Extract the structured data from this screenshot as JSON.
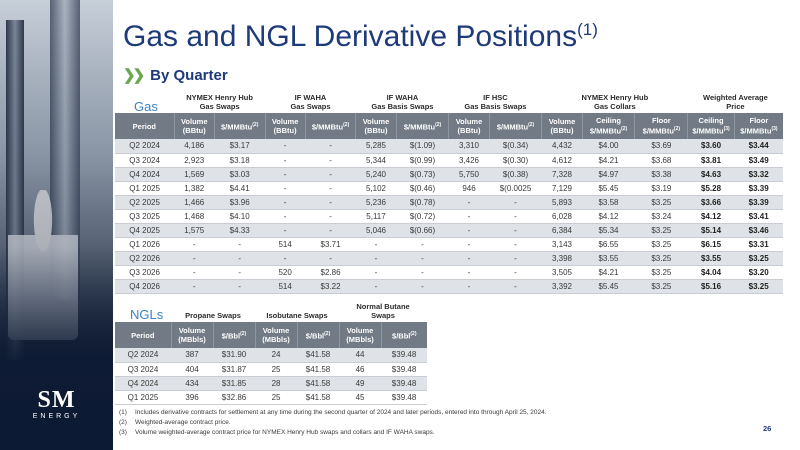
{
  "title": "Gas and NGL Derivative Positions",
  "title_sup": "(1)",
  "subtitle": "By Quarter",
  "logo": {
    "main": "SM",
    "sub": "ENERGY"
  },
  "gas": {
    "label": "Gas",
    "groups": [
      "NYMEX Henry Hub\nGas Swaps",
      "IF WAHA\nGas Swaps",
      "IF WAHA\nGas Basis Swaps",
      "IF HSC\nGas Basis Swaps",
      "NYMEX Henry Hub\nGas Collars",
      "Weighted Average\nPrice"
    ],
    "headers": [
      "Period",
      "Volume\n(BBtu)",
      "$/MMBtu(2)",
      "Volume\n(BBtu)",
      "$/MMBtu(2)",
      "Volume\n(BBtu)",
      "$/MMBtu(2)",
      "Volume\n(BBtu)",
      "$/MMBtu(2)",
      "Volume\n(BBtu)",
      "Ceiling\n$/MMBtu(2)",
      "Floor\n$/MMBtu(2)",
      "Ceiling\n$/MMBtu(3)",
      "Floor\n$/MMBtu(3)"
    ],
    "rows": [
      [
        "Q2 2024",
        "4,186",
        "$3.17",
        "-",
        "-",
        "5,285",
        "$(1.09)",
        "3,310",
        "$(0.34)",
        "4,432",
        "$4.00",
        "$3.69",
        "$3.60",
        "$3.44"
      ],
      [
        "Q3 2024",
        "2,923",
        "$3.18",
        "-",
        "-",
        "5,344",
        "$(0.99)",
        "3,426",
        "$(0.30)",
        "4,612",
        "$4.21",
        "$3.68",
        "$3.81",
        "$3.49"
      ],
      [
        "Q4 2024",
        "1,569",
        "$3.03",
        "-",
        "-",
        "5,240",
        "$(0.73)",
        "5,750",
        "$(0.38)",
        "7,328",
        "$4.97",
        "$3.38",
        "$4.63",
        "$3.32"
      ],
      [
        "Q1 2025",
        "1,382",
        "$4.41",
        "-",
        "-",
        "5,102",
        "$(0.46)",
        "946",
        "$(0.0025",
        "7,129",
        "$5.45",
        "$3.19",
        "$5.28",
        "$3.39"
      ],
      [
        "Q2 2025",
        "1,466",
        "$3.96",
        "-",
        "-",
        "5,236",
        "$(0.78)",
        "-",
        "-",
        "5,893",
        "$3.58",
        "$3.25",
        "$3.66",
        "$3.39"
      ],
      [
        "Q3 2025",
        "1,468",
        "$4.10",
        "-",
        "-",
        "5,117",
        "$(0.72)",
        "-",
        "-",
        "6,028",
        "$4.12",
        "$3.24",
        "$4.12",
        "$3.41"
      ],
      [
        "Q4 2025",
        "1,575",
        "$4.33",
        "-",
        "-",
        "5,046",
        "$(0.66)",
        "-",
        "-",
        "6,384",
        "$5.34",
        "$3.25",
        "$5.14",
        "$3.46"
      ],
      [
        "Q1 2026",
        "-",
        "-",
        "514",
        "$3.71",
        "-",
        "-",
        "-",
        "-",
        "3,143",
        "$6.55",
        "$3.25",
        "$6.15",
        "$3.31"
      ],
      [
        "Q2 2026",
        "-",
        "-",
        "-",
        "-",
        "-",
        "-",
        "-",
        "-",
        "3,398",
        "$3.55",
        "$3.25",
        "$3.55",
        "$3.25"
      ],
      [
        "Q3 2026",
        "-",
        "-",
        "520",
        "$2.86",
        "-",
        "-",
        "-",
        "-",
        "3,505",
        "$4.21",
        "$3.25",
        "$4.04",
        "$3.20"
      ],
      [
        "Q4 2026",
        "-",
        "-",
        "514",
        "$3.22",
        "-",
        "-",
        "-",
        "-",
        "3,392",
        "$5.45",
        "$3.25",
        "$5.16",
        "$3.25"
      ]
    ]
  },
  "ngl": {
    "label": "NGLs",
    "groups": [
      "Propane Swaps",
      "Isobutane Swaps",
      "Normal Butane\nSwaps"
    ],
    "headers": [
      "Period",
      "Volume\n(MBbls)",
      "$/Bbl(2)",
      "Volume\n(MBbls)",
      "$/Bbl(2)",
      "Volume\n(MBbls)",
      "$/Bbl(2)"
    ],
    "rows": [
      [
        "Q2 2024",
        "387",
        "$31.90",
        "24",
        "$41.58",
        "44",
        "$39.48"
      ],
      [
        "Q3 2024",
        "404",
        "$31.87",
        "25",
        "$41.58",
        "46",
        "$39.48"
      ],
      [
        "Q4 2024",
        "434",
        "$31.85",
        "28",
        "$41.58",
        "49",
        "$39.48"
      ],
      [
        "Q1 2025",
        "396",
        "$32.86",
        "25",
        "$41.58",
        "45",
        "$39.48"
      ]
    ]
  },
  "footnotes": [
    {
      "num": "(1)",
      "text": "Includes derivative contracts for settlement at any time during the second quarter of 2024 and later periods, entered into through April 25, 2024."
    },
    {
      "num": "(2)",
      "text": "Weighted-average contract price."
    },
    {
      "num": "(3)",
      "text": "Volume weighted-average contract price for NYMEX Henry Hub swaps and collars and IF WAHA swaps."
    }
  ],
  "page_number": "26"
}
